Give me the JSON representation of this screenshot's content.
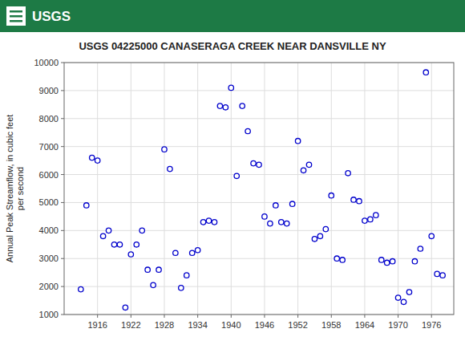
{
  "chart_data": {
    "type": "scatter",
    "title": "USGS 04225000 CANASERAGA CREEK NEAR DANSVILLE NY",
    "annotations": [
      "USGS"
    ],
    "ylabel": "Annual Peak Streamflow, in cubic feet\nper second",
    "xlim": [
      1910,
      1980
    ],
    "ylim": [
      1000,
      10000
    ],
    "xticks": [
      1916,
      1922,
      1928,
      1934,
      1940,
      1946,
      1952,
      1958,
      1964,
      1970,
      1976
    ],
    "yticks": [
      1000,
      2000,
      3000,
      4000,
      5000,
      6000,
      7000,
      8000,
      9000,
      10000
    ],
    "grid": true,
    "marker": "circle",
    "color": "#0000cc",
    "x": [
      1913,
      1914,
      1915,
      1916,
      1917,
      1918,
      1919,
      1920,
      1921,
      1922,
      1923,
      1924,
      1925,
      1926,
      1927,
      1928,
      1929,
      1930,
      1931,
      1932,
      1933,
      1934,
      1935,
      1936,
      1937,
      1938,
      1939,
      1940,
      1941,
      1942,
      1943,
      1944,
      1945,
      1946,
      1947,
      1948,
      1949,
      1950,
      1951,
      1952,
      1953,
      1954,
      1955,
      1956,
      1957,
      1958,
      1959,
      1960,
      1961,
      1962,
      1963,
      1964,
      1965,
      1966,
      1967,
      1968,
      1969,
      1970,
      1971,
      1972,
      1973,
      1974,
      1975,
      1976,
      1977,
      1978
    ],
    "values": [
      1900,
      4900,
      6600,
      6500,
      3800,
      4000,
      3500,
      3500,
      1250,
      3150,
      3500,
      4000,
      2600,
      2050,
      2600,
      6900,
      6200,
      3200,
      1950,
      2400,
      3200,
      3300,
      4300,
      4350,
      4300,
      8450,
      8400,
      9100,
      5950,
      8450,
      7550,
      6400,
      6350,
      4500,
      4250,
      4900,
      4300,
      4250,
      4950,
      7200,
      6150,
      6350,
      3700,
      3800,
      4050,
      5250,
      3000,
      2950,
      6050,
      5100,
      5050,
      4350,
      4400,
      4550,
      2950,
      2850,
      2900,
      1600,
      1450,
      1800,
      2900,
      3350,
      9650,
      3800,
      2450,
      2400
    ]
  }
}
